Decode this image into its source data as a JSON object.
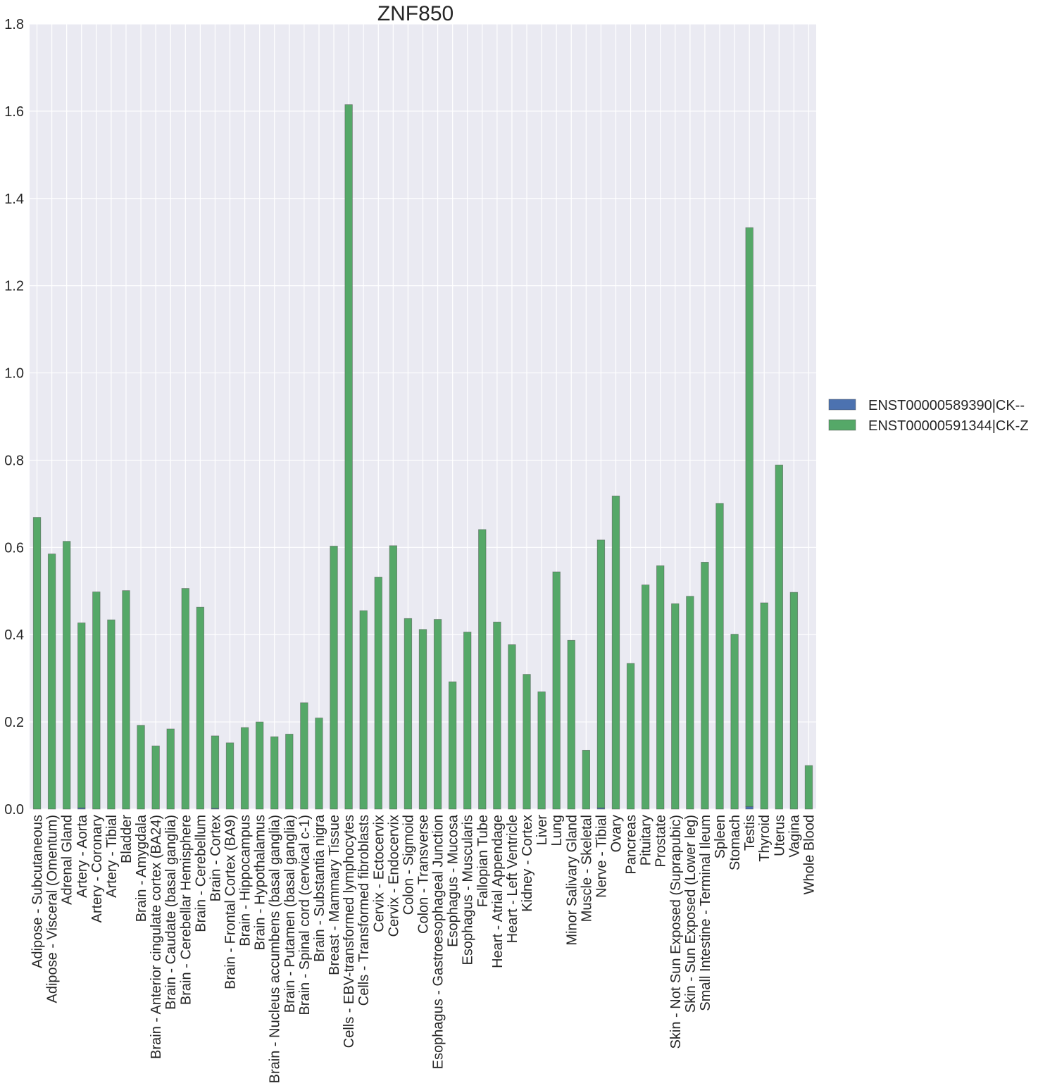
{
  "chart_data": {
    "type": "bar",
    "stacked": true,
    "title": "ZNF850",
    "xlabel": "",
    "ylabel": "",
    "ylim": [
      0,
      1.8
    ],
    "yticks": [
      "0.0",
      "0.2",
      "0.4",
      "0.6",
      "0.8",
      "1.0",
      "1.2",
      "1.4",
      "1.6",
      "1.8"
    ],
    "grid": true,
    "legend_position": "right",
    "categories": [
      "Adipose - Subcutaneous",
      "Adipose - Visceral (Omentum)",
      "Adrenal Gland",
      "Artery - Aorta",
      "Artery - Coronary",
      "Artery - Tibial",
      "Bladder",
      "Brain - Amygdala",
      "Brain - Anterior cingulate cortex (BA24)",
      "Brain - Caudate (basal ganglia)",
      "Brain - Cerebellar Hemisphere",
      "Brain - Cerebellum",
      "Brain - Cortex",
      "Brain - Frontal Cortex (BA9)",
      "Brain - Hippocampus",
      "Brain - Hypothalamus",
      "Brain - Nucleus accumbens (basal ganglia)",
      "Brain - Putamen (basal ganglia)",
      "Brain - Spinal cord (cervical c-1)",
      "Brain - Substantia nigra",
      "Breast - Mammary Tissue",
      "Cells - EBV-transformed lymphocytes",
      "Cells - Transformed fibroblasts",
      "Cervix - Ectocervix",
      "Cervix - Endocervix",
      "Colon - Sigmoid",
      "Colon - Transverse",
      "Esophagus - Gastroesophageal Junction",
      "Esophagus - Mucosa",
      "Esophagus - Muscularis",
      "Fallopian Tube",
      "Heart - Atrial Appendage",
      "Heart - Left Ventricle",
      "Kidney - Cortex",
      "Liver",
      "Lung",
      "Minor Salivary Gland",
      "Muscle - Skeletal",
      "Nerve - Tibial",
      "Ovary",
      "Pancreas",
      "Pituitary",
      "Prostate",
      "Skin - Not Sun Exposed (Suprapubic)",
      "Skin - Sun Exposed (Lower leg)",
      "Small Intestine - Terminal Ileum",
      "Spleen",
      "Stomach",
      "Testis",
      "Thyroid",
      "Uterus",
      "Vagina",
      "Whole Blood"
    ],
    "series": [
      {
        "name": "ENST00000589390|CK--",
        "color": "#4c72b0",
        "values": [
          0,
          0,
          0,
          0.003,
          0,
          0,
          0,
          0,
          0,
          0,
          0,
          0,
          0.002,
          0,
          0,
          0,
          0,
          0,
          0,
          0,
          0,
          0,
          0,
          0,
          0,
          0,
          0,
          0,
          0,
          0,
          0,
          0,
          0,
          0,
          0,
          0,
          0,
          0,
          0.003,
          0,
          0,
          0,
          0,
          0,
          0,
          0,
          0,
          0,
          0.006,
          0,
          0,
          0,
          0
        ]
      },
      {
        "name": "ENST00000591344|CK-Z",
        "color": "#55a868",
        "values": [
          0.669,
          0.585,
          0.614,
          0.424,
          0.498,
          0.434,
          0.501,
          0.192,
          0.145,
          0.184,
          0.506,
          0.463,
          0.166,
          0.152,
          0.187,
          0.2,
          0.166,
          0.172,
          0.244,
          0.209,
          0.603,
          1.615,
          0.455,
          0.532,
          0.604,
          0.437,
          0.412,
          0.435,
          0.292,
          0.406,
          0.641,
          0.429,
          0.377,
          0.309,
          0.269,
          0.544,
          0.387,
          0.135,
          0.614,
          0.718,
          0.334,
          0.514,
          0.558,
          0.471,
          0.488,
          0.566,
          0.701,
          0.401,
          1.327,
          0.473,
          0.789,
          0.497,
          0.1
        ]
      }
    ]
  }
}
